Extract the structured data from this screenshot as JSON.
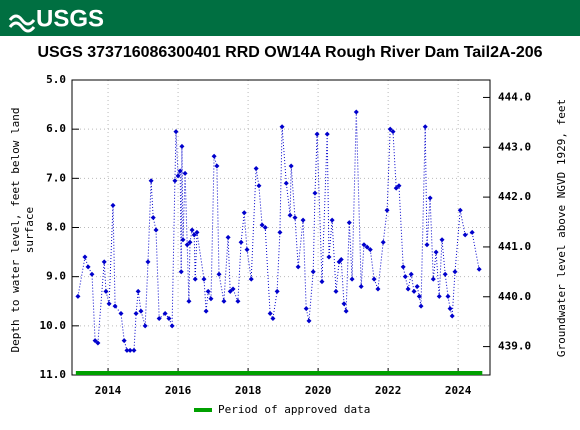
{
  "header": {
    "logo": "USGS"
  },
  "chart_data": {
    "type": "scatter-line",
    "title": "USGS 373716086300401 RRD OW14A Rough River Dam Tail2A-206",
    "ylabel": [
      "Depth to water level, feet below land",
      "surface"
    ],
    "y2label": "Groundwater level above NGVD 1929, feet",
    "color": "#0000cc",
    "y_inverted": true,
    "grid": true,
    "xlim": [
      2012.97,
      2024.91
    ],
    "xticks": [
      2014,
      2016,
      2018,
      2020,
      2022,
      2024
    ],
    "ylim": [
      5.0,
      11.0
    ],
    "yticks": [
      {
        "value": 5,
        "label": "5.0"
      },
      {
        "value": 6,
        "label": "6.0"
      },
      {
        "value": 7,
        "label": "7.0"
      },
      {
        "value": 8,
        "label": "8.0"
      },
      {
        "value": 9,
        "label": "9.0"
      },
      {
        "value": 10,
        "label": "10.0"
      },
      {
        "value": 11,
        "label": "11.0"
      }
    ],
    "y2lim": [
      438.43,
      444.35
    ],
    "y2ticks": [
      {
        "value": 439,
        "label": "439.0"
      },
      {
        "value": 440,
        "label": "440.0"
      },
      {
        "value": 441,
        "label": "441.0"
      },
      {
        "value": 442,
        "label": "442.0"
      },
      {
        "value": 443,
        "label": "443.0"
      },
      {
        "value": 444,
        "label": "444.0"
      }
    ],
    "x": [
      2013.14,
      2013.34,
      2013.43,
      2013.54,
      2013.63,
      2013.71,
      2013.89,
      2013.94,
      2014.03,
      2014.14,
      2014.2,
      2014.37,
      2014.46,
      2014.54,
      2014.63,
      2014.74,
      2014.8,
      2014.86,
      2014.94,
      2015.06,
      2015.14,
      2015.23,
      2015.29,
      2015.37,
      2015.46,
      2015.63,
      2015.74,
      2015.83,
      2015.91,
      2015.94,
      2016.0,
      2016.06,
      2016.09,
      2016.11,
      2016.14,
      2016.2,
      2016.26,
      2016.31,
      2016.34,
      2016.4,
      2016.46,
      2016.49,
      2016.54,
      2016.74,
      2016.8,
      2016.86,
      2016.94,
      2017.03,
      2017.11,
      2017.17,
      2017.31,
      2017.43,
      2017.49,
      2017.57,
      2017.71,
      2017.8,
      2017.89,
      2017.97,
      2018.09,
      2018.23,
      2018.31,
      2018.4,
      2018.49,
      2018.63,
      2018.71,
      2018.83,
      2018.91,
      2018.97,
      2019.09,
      2019.2,
      2019.23,
      2019.34,
      2019.43,
      2019.57,
      2019.66,
      2019.74,
      2019.86,
      2019.91,
      2019.97,
      2020.11,
      2020.26,
      2020.31,
      2020.4,
      2020.51,
      2020.6,
      2020.66,
      2020.74,
      2020.8,
      2020.89,
      2020.97,
      2021.09,
      2021.23,
      2021.31,
      2021.4,
      2021.49,
      2021.6,
      2021.71,
      2021.86,
      2021.97,
      2022.06,
      2022.14,
      2022.23,
      2022.31,
      2022.43,
      2022.49,
      2022.57,
      2022.66,
      2022.74,
      2022.83,
      2022.89,
      2022.94,
      2023.06,
      2023.11,
      2023.2,
      2023.29,
      2023.37,
      2023.46,
      2023.54,
      2023.63,
      2023.71,
      2023.77,
      2023.83,
      2023.91,
      2024.06,
      2024.2,
      2024.4,
      2024.6
    ],
    "values": [
      9.4,
      8.6,
      8.8,
      8.95,
      10.3,
      10.35,
      8.7,
      9.3,
      9.55,
      7.55,
      9.6,
      9.75,
      10.3,
      10.5,
      10.5,
      10.5,
      9.75,
      9.3,
      9.7,
      10.0,
      8.7,
      7.05,
      7.8,
      8.05,
      9.85,
      9.75,
      9.85,
      10.0,
      7.05,
      6.05,
      6.95,
      6.85,
      8.9,
      6.35,
      8.25,
      6.9,
      8.35,
      9.5,
      8.3,
      8.05,
      8.15,
      9.05,
      8.1,
      9.05,
      9.7,
      9.3,
      9.45,
      6.55,
      6.75,
      8.95,
      9.5,
      8.2,
      9.3,
      9.25,
      9.5,
      8.3,
      7.7,
      8.45,
      9.05,
      6.8,
      7.15,
      7.95,
      8.0,
      9.75,
      9.85,
      9.3,
      8.1,
      5.95,
      7.1,
      7.75,
      6.75,
      7.8,
      8.8,
      7.85,
      9.65,
      9.9,
      8.9,
      7.3,
      6.1,
      9.1,
      6.1,
      8.6,
      7.85,
      9.3,
      8.7,
      8.65,
      9.55,
      9.7,
      7.9,
      9.05,
      5.65,
      9.2,
      8.35,
      8.4,
      8.45,
      9.05,
      9.25,
      8.3,
      7.65,
      6.0,
      6.05,
      7.2,
      7.15,
      8.8,
      9.0,
      9.25,
      8.95,
      9.3,
      9.2,
      9.4,
      9.6,
      5.95,
      8.35,
      7.4,
      9.05,
      8.5,
      9.4,
      8.25,
      8.95,
      9.4,
      9.65,
      9.8,
      8.9,
      7.65,
      8.15,
      8.1,
      8.85
    ],
    "approved_period": {
      "label": "Period of approved data",
      "start": 2013.08,
      "end": 2024.69,
      "color": "#00a000"
    }
  }
}
